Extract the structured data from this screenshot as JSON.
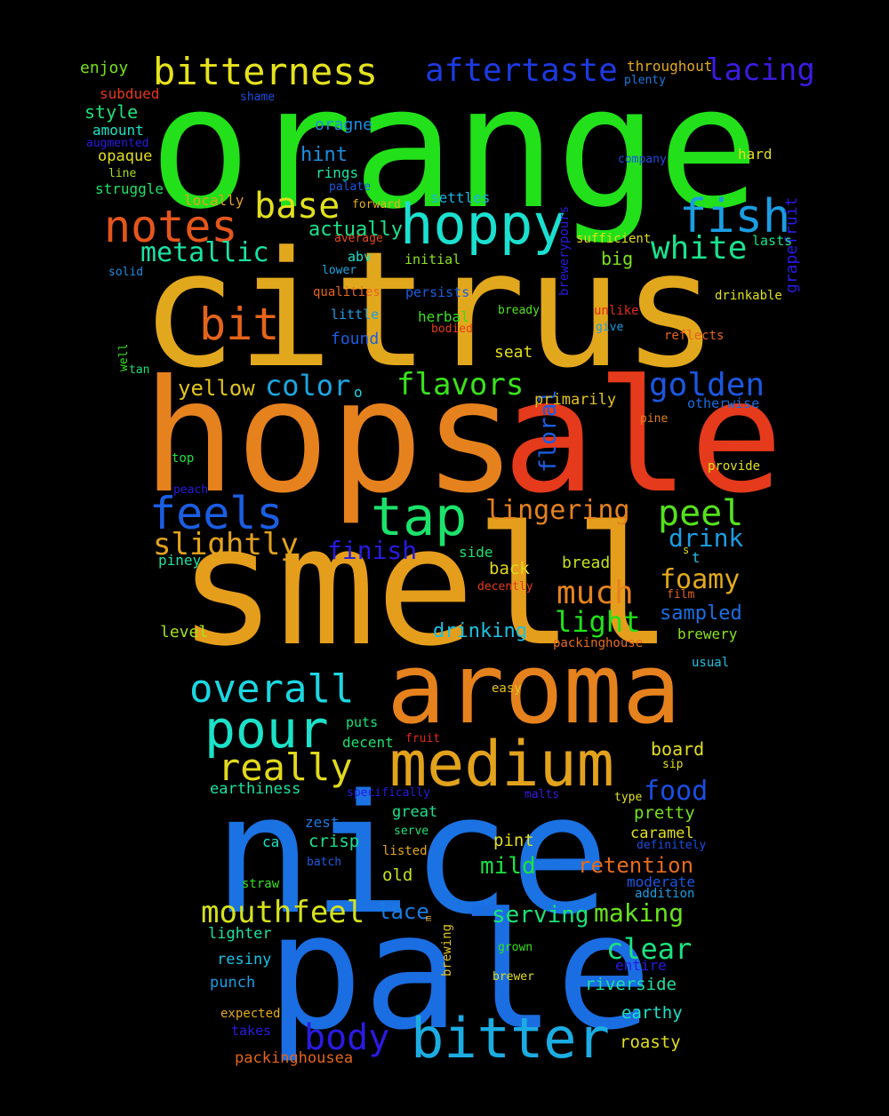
{
  "words": [
    {
      "text": "orange",
      "color": "#22e11a"
    },
    {
      "text": "citrus",
      "color": "#e2a81d"
    },
    {
      "text": "hops",
      "color": "#e6821e"
    },
    {
      "text": "ale",
      "color": "#e53a1b"
    },
    {
      "text": "smell",
      "color": "#e59e1c"
    },
    {
      "text": "nice",
      "color": "#1b72e2"
    },
    {
      "text": "pale",
      "color": "#1b6ee2"
    },
    {
      "text": "aroma",
      "color": "#e5821d"
    },
    {
      "text": "medium",
      "color": "#e2a21c"
    },
    {
      "text": "bitter",
      "color": "#1bade2"
    },
    {
      "text": "hoppy",
      "color": "#1be0cf"
    },
    {
      "text": "bitterness",
      "color": "#e6e21c"
    },
    {
      "text": "aftertaste",
      "color": "#1c3ae2"
    },
    {
      "text": "lacing",
      "color": "#3b1be2"
    },
    {
      "text": "notes",
      "color": "#e5561b"
    },
    {
      "text": "base",
      "color": "#e2e11c"
    },
    {
      "text": "fish",
      "color": "#1b9de2"
    },
    {
      "text": "white",
      "color": "#1be28c"
    },
    {
      "text": "metallic",
      "color": "#1be2a4"
    },
    {
      "text": "bit",
      "color": "#e5641b"
    },
    {
      "text": "tap",
      "color": "#1be26b"
    },
    {
      "text": "feels",
      "color": "#1b5ee2"
    },
    {
      "text": "peel",
      "color": "#54e21b"
    },
    {
      "text": "lingering",
      "color": "#e5821d"
    },
    {
      "text": "slightly",
      "color": "#e2a21c"
    },
    {
      "text": "color",
      "color": "#1ba6e2"
    },
    {
      "text": "flavors",
      "color": "#3ae21b"
    },
    {
      "text": "golden",
      "color": "#1c57e2"
    },
    {
      "text": "yellow",
      "color": "#e2c31c"
    },
    {
      "text": "finish",
      "color": "#281be2"
    },
    {
      "text": "drink",
      "color": "#1b9ee2"
    },
    {
      "text": "much",
      "color": "#e5821d"
    },
    {
      "text": "foamy",
      "color": "#e2aa1c"
    },
    {
      "text": "light",
      "color": "#22e21b"
    },
    {
      "text": "overall",
      "color": "#1bd7e2"
    },
    {
      "text": "pour",
      "color": "#1be2c8"
    },
    {
      "text": "really",
      "color": "#e2d91c"
    },
    {
      "text": "mouthfeel",
      "color": "#d6e21b"
    },
    {
      "text": "body",
      "color": "#2a1be2"
    },
    {
      "text": "food",
      "color": "#1b4ee2"
    },
    {
      "text": "retention",
      "color": "#e56c1b"
    },
    {
      "text": "serving",
      "color": "#1be278"
    },
    {
      "text": "making",
      "color": "#68e21b"
    },
    {
      "text": "clear",
      "color": "#1be27e"
    },
    {
      "text": "mild",
      "color": "#1be240"
    },
    {
      "text": "lace",
      "color": "#1b7ae2"
    },
    {
      "text": "drinking",
      "color": "#1bc1e2"
    },
    {
      "text": "sampled",
      "color": "#1b6ee2"
    },
    {
      "text": "actually",
      "color": "#1be28c"
    },
    {
      "text": "hint",
      "color": "#1b8ee2"
    },
    {
      "text": "floral",
      "color": "#1b5ee2",
      "vertical": true
    },
    {
      "text": "grapefruit",
      "color": "#2a1be2",
      "vertical": true
    },
    {
      "text": "brewerypours",
      "color": "#281be2",
      "vertical": true
    },
    {
      "text": "enjoy",
      "color": "#74e21b"
    },
    {
      "text": "subdued",
      "color": "#e53a1b"
    },
    {
      "text": "style",
      "color": "#1be278"
    },
    {
      "text": "amount",
      "color": "#1be2c5"
    },
    {
      "text": "augmented",
      "color": "#281be2"
    },
    {
      "text": "opaque",
      "color": "#e2de1c"
    },
    {
      "text": "line",
      "color": "#a4e21b"
    },
    {
      "text": "struggle",
      "color": "#1be26c"
    },
    {
      "text": "shame",
      "color": "#1b4ee2"
    },
    {
      "text": "oragne",
      "color": "#1b8ee2"
    },
    {
      "text": "rings",
      "color": "#1be2a4"
    },
    {
      "text": "palate",
      "color": "#1c57e2"
    },
    {
      "text": "locally",
      "color": "#e2a21c"
    },
    {
      "text": "forward",
      "color": "#e2b21c"
    },
    {
      "text": "average",
      "color": "#e54a1b"
    },
    {
      "text": "abv",
      "color": "#1be2c8"
    },
    {
      "text": "lower",
      "color": "#1ba6e2"
    },
    {
      "text": "solid",
      "color": "#1b8ee2"
    },
    {
      "text": "initial",
      "color": "#8ce21b"
    },
    {
      "text": "settles",
      "color": "#1bb6e2"
    },
    {
      "text": "throughout",
      "color": "#e2aa1c"
    },
    {
      "text": "plenty",
      "color": "#1b7ae2"
    },
    {
      "text": "company",
      "color": "#1b4ee2"
    },
    {
      "text": "hard",
      "color": "#e2de1c"
    },
    {
      "text": "sufficient",
      "color": "#e2de1c"
    },
    {
      "text": "lasts",
      "color": "#1be28c"
    },
    {
      "text": "big",
      "color": "#7ce21b"
    },
    {
      "text": "drinkable",
      "color": "#e2e11c"
    },
    {
      "text": "qualities",
      "color": "#e5641b"
    },
    {
      "text": "persists",
      "color": "#1b5ee2"
    },
    {
      "text": "bready",
      "color": "#54e21b"
    },
    {
      "text": "unlike",
      "color": "#e5281b"
    },
    {
      "text": "little",
      "color": "#1b9ee2"
    },
    {
      "text": "herbal",
      "color": "#3ae21b"
    },
    {
      "text": "bodied",
      "color": "#e53a1b"
    },
    {
      "text": "give",
      "color": "#1b9ee2"
    },
    {
      "text": "reflects",
      "color": "#e5641b"
    },
    {
      "text": "found",
      "color": "#1b5ee2"
    },
    {
      "text": "seat",
      "color": "#e2de1c"
    },
    {
      "text": "well",
      "color": "#38e21b",
      "vertical": true
    },
    {
      "text": "tan",
      "color": "#1be278"
    },
    {
      "text": "o",
      "color": "#1bd7e2"
    },
    {
      "text": "primarily",
      "color": "#e2c31c"
    },
    {
      "text": "otherwise",
      "color": "#1b6ee2"
    },
    {
      "text": "pine",
      "color": "#e5821d"
    },
    {
      "text": "top",
      "color": "#1be240"
    },
    {
      "text": "provide",
      "color": "#e2e11c"
    },
    {
      "text": "peach",
      "color": "#281be2"
    },
    {
      "text": "piney",
      "color": "#1be2a4"
    },
    {
      "text": "side",
      "color": "#1be26c"
    },
    {
      "text": "back",
      "color": "#e2d91c"
    },
    {
      "text": "bread",
      "color": "#c4e21b"
    },
    {
      "text": "s",
      "color": "#e2de1c"
    },
    {
      "text": "t",
      "color": "#1bc1e2"
    },
    {
      "text": "decently",
      "color": "#e53a1b"
    },
    {
      "text": "film",
      "color": "#e5641b"
    },
    {
      "text": "level",
      "color": "#a4e21b"
    },
    {
      "text": "packinghouse",
      "color": "#e56c1b"
    },
    {
      "text": "brewery",
      "color": "#8ce21b"
    },
    {
      "text": "usual",
      "color": "#1bc1e2"
    },
    {
      "text": "easy",
      "color": "#e2c31c"
    },
    {
      "text": "puts",
      "color": "#1be278"
    },
    {
      "text": "decent",
      "color": "#1be26c"
    },
    {
      "text": "fruit",
      "color": "#e5281b"
    },
    {
      "text": "board",
      "color": "#e2de1c"
    },
    {
      "text": "sip",
      "color": "#e2de1c"
    },
    {
      "text": "earthiness",
      "color": "#1be2a4"
    },
    {
      "text": "specifically",
      "color": "#281be2"
    },
    {
      "text": "malts",
      "color": "#3b1be2"
    },
    {
      "text": "type",
      "color": "#e2e11c"
    },
    {
      "text": "zest",
      "color": "#1b7ae2"
    },
    {
      "text": "great",
      "color": "#1be28c"
    },
    {
      "text": "pretty",
      "color": "#74e21b"
    },
    {
      "text": "serve",
      "color": "#1be278"
    },
    {
      "text": "caramel",
      "color": "#e2de1c"
    },
    {
      "text": "definitely",
      "color": "#1b4ee2"
    },
    {
      "text": "ca",
      "color": "#1be2c8"
    },
    {
      "text": "crisp",
      "color": "#1be28c"
    },
    {
      "text": "pint",
      "color": "#e2de1c"
    },
    {
      "text": "listed",
      "color": "#e2aa1c"
    },
    {
      "text": "batch",
      "color": "#1b5ee2"
    },
    {
      "text": "old",
      "color": "#c4e21b"
    },
    {
      "text": "straw",
      "color": "#38e21b"
    },
    {
      "text": "moderate",
      "color": "#1b57e2"
    },
    {
      "text": "addition",
      "color": "#1b9ee2"
    },
    {
      "text": "m",
      "color": "#e2aa1c",
      "vertical": true
    },
    {
      "text": "brewing",
      "color": "#e2c31c",
      "vertical": true
    },
    {
      "text": "lighter",
      "color": "#1be2a4"
    },
    {
      "text": "grown",
      "color": "#38e21b"
    },
    {
      "text": "entire",
      "color": "#281be2"
    },
    {
      "text": "resiny",
      "color": "#1bc1e2"
    },
    {
      "text": "brewer",
      "color": "#e2de1c"
    },
    {
      "text": "riverside",
      "color": "#1be2a4"
    },
    {
      "text": "punch",
      "color": "#1b9ee2"
    },
    {
      "text": "earthy",
      "color": "#1be2c8"
    },
    {
      "text": "expected",
      "color": "#e2aa1c"
    },
    {
      "text": "takes",
      "color": "#2a1be2"
    },
    {
      "text": "roasty",
      "color": "#e2de1c"
    },
    {
      "text": "packinghousea",
      "color": "#e5641b"
    }
  ]
}
